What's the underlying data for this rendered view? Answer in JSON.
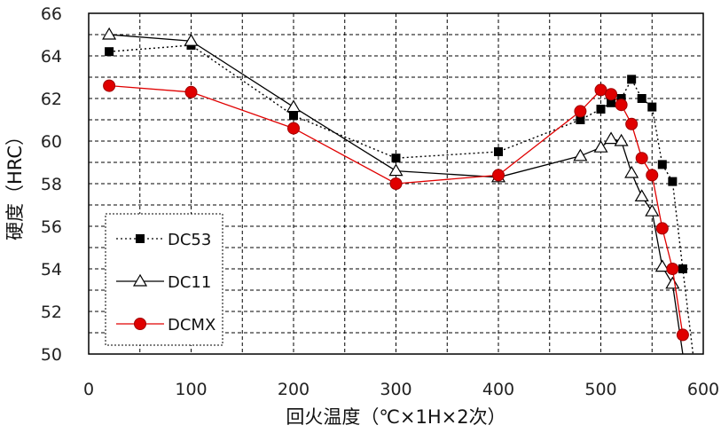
{
  "chart_data": {
    "type": "line",
    "xlabel": "回火温度（℃×1H×2次）",
    "ylabel": "硬度（HRC）",
    "xlim": [
      0,
      600
    ],
    "ylim": [
      50,
      66
    ],
    "xticks": [
      "0",
      "100",
      "200",
      "300",
      "400",
      "500",
      "600"
    ],
    "yticks": [
      "50",
      "52",
      "54",
      "56",
      "58",
      "60",
      "62",
      "64",
      "66"
    ],
    "grid": true,
    "legend_position": "bottom-left",
    "series": [
      {
        "name": "DC53",
        "marker": "square",
        "line": "dotted",
        "color": "#000000",
        "points": [
          [
            20,
            64.2
          ],
          [
            100,
            64.5
          ],
          [
            200,
            61.2
          ],
          [
            300,
            59.2
          ],
          [
            400,
            59.5
          ],
          [
            480,
            61.0
          ],
          [
            500,
            61.5
          ],
          [
            510,
            61.8
          ],
          [
            520,
            62.0
          ],
          [
            530,
            62.9
          ],
          [
            540,
            62.0
          ],
          [
            550,
            61.6
          ],
          [
            560,
            58.9
          ],
          [
            570,
            58.1
          ],
          [
            580,
            54.0
          ],
          [
            590,
            50.0
          ]
        ]
      },
      {
        "name": "DC11",
        "marker": "triangle",
        "line": "solid",
        "color": "#000000",
        "points": [
          [
            20,
            65.0
          ],
          [
            100,
            64.7
          ],
          [
            200,
            61.6
          ],
          [
            300,
            58.6
          ],
          [
            400,
            58.3
          ],
          [
            480,
            59.3
          ],
          [
            500,
            59.7
          ],
          [
            510,
            60.1
          ],
          [
            520,
            60.0
          ],
          [
            530,
            58.5
          ],
          [
            540,
            57.4
          ],
          [
            550,
            56.7
          ],
          [
            560,
            54.1
          ],
          [
            570,
            53.3
          ],
          [
            580,
            50.0
          ]
        ]
      },
      {
        "name": "DCMX",
        "marker": "circle",
        "line": "solid",
        "color": "#e00000",
        "points": [
          [
            20,
            62.6
          ],
          [
            100,
            62.3
          ],
          [
            200,
            60.6
          ],
          [
            300,
            58.0
          ],
          [
            400,
            58.4
          ],
          [
            480,
            61.4
          ],
          [
            500,
            62.4
          ],
          [
            510,
            62.2
          ],
          [
            520,
            61.7
          ],
          [
            530,
            60.8
          ],
          [
            540,
            59.2
          ],
          [
            550,
            58.4
          ],
          [
            560,
            55.9
          ],
          [
            570,
            54.0
          ],
          [
            580,
            50.9
          ]
        ]
      }
    ]
  }
}
